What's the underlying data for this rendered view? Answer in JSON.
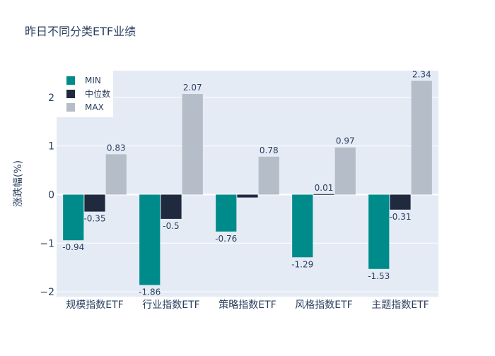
{
  "chart_data": {
    "type": "bar",
    "title": "昨日不同分类ETF业绩",
    "xlabel": "",
    "ylabel": "涨跌幅(%)",
    "ylim": [
      -2.1,
      2.55
    ],
    "yticks": [
      -2,
      -1,
      0,
      1,
      2
    ],
    "ytick_labels": [
      "−2",
      "−1",
      "0",
      "1",
      "2"
    ],
    "grid": true,
    "legend_position": "top-left",
    "categories": [
      "规模指数ETF",
      "行业指数ETF",
      "策略指数ETF",
      "风格指数ETF",
      "主题指数ETF"
    ],
    "series": [
      {
        "name": "MIN",
        "color": "#008b8b",
        "values": [
          -0.94,
          -1.86,
          -0.76,
          -1.29,
          -1.53
        ],
        "labels": [
          "-0.94",
          "-1.86",
          "-0.76",
          "-1.29",
          "-1.53"
        ]
      },
      {
        "name": "中位数",
        "color": "#1f2a3f",
        "values": [
          -0.35,
          -0.5,
          -0.06,
          0.01,
          -0.31
        ],
        "labels": [
          "-0.35",
          "-0.5",
          "",
          "0.01",
          "-0.31"
        ]
      },
      {
        "name": "MAX",
        "color": "#b5bec8",
        "values": [
          0.83,
          2.07,
          0.78,
          0.97,
          2.34
        ],
        "labels": [
          "0.83",
          "2.07",
          "0.78",
          "0.97",
          "2.34"
        ]
      }
    ]
  },
  "colors": {
    "plot_background": "#e5ebf5",
    "gridline": "#ffffff",
    "text": "#2a3f5f"
  }
}
